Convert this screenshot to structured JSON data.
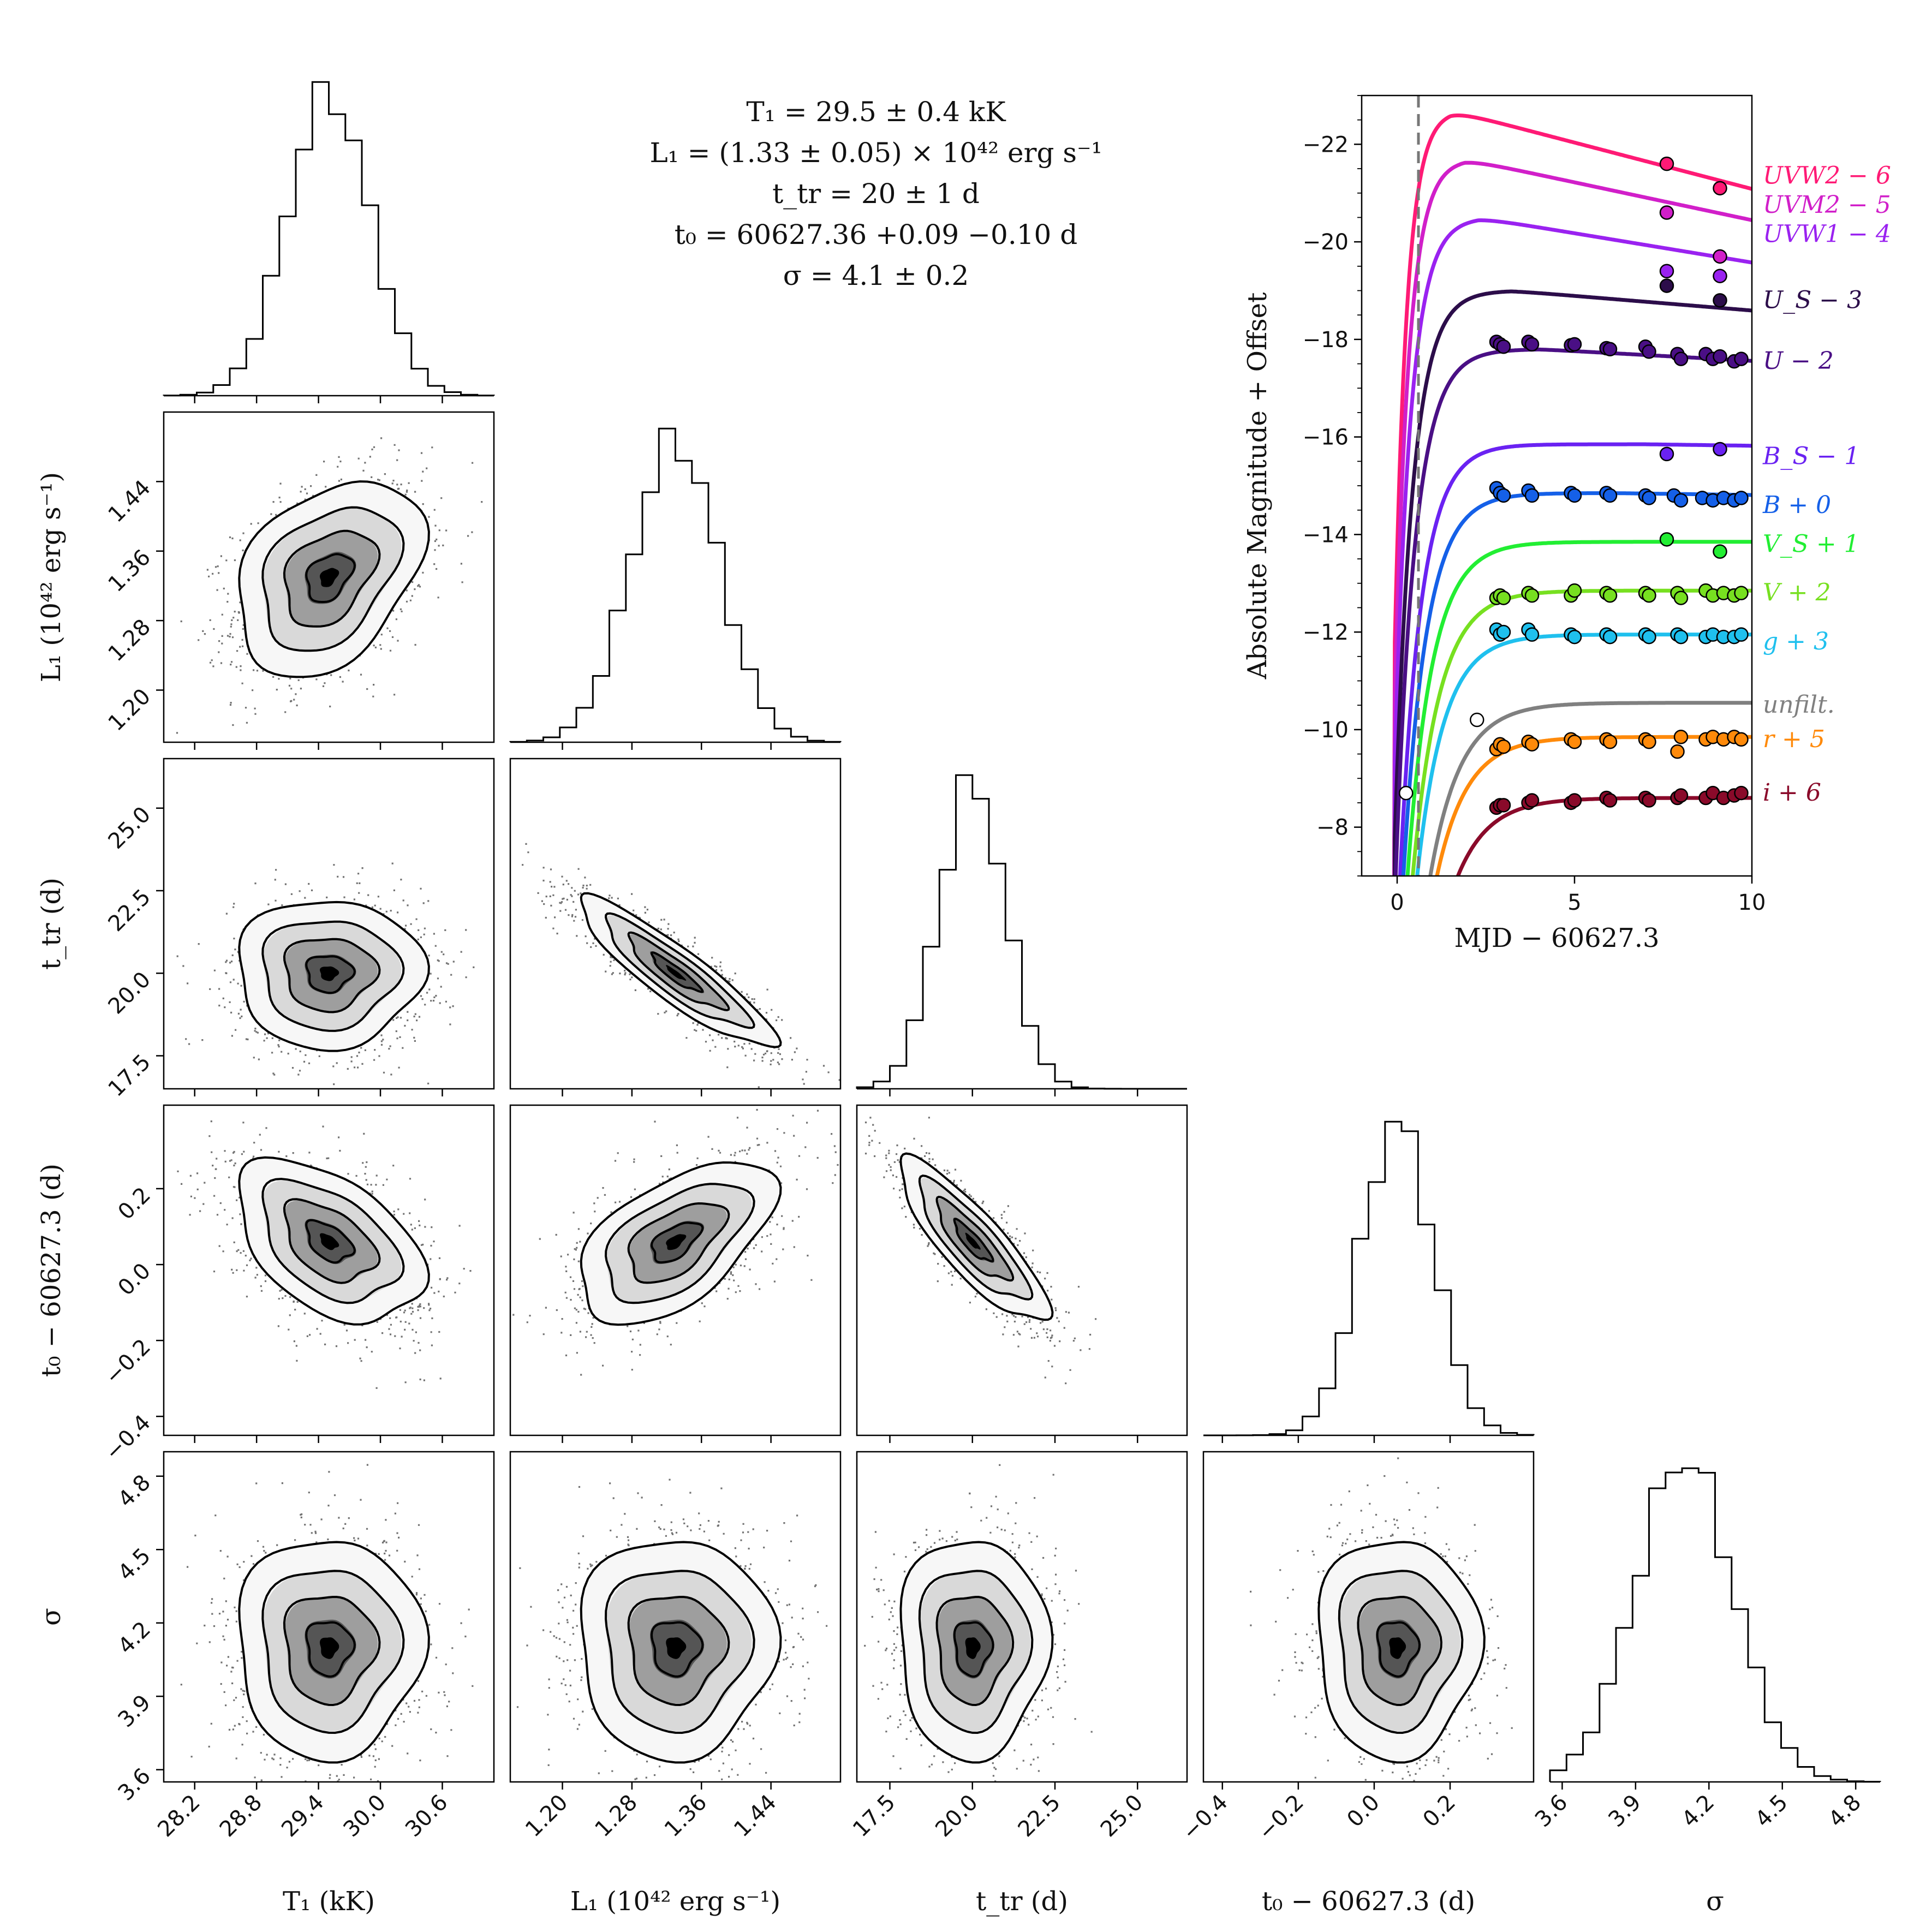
{
  "figure": {
    "summary": [
      "T₁ = 29.5 ± 0.4 kK",
      "L₁ = (1.33 ± 0.05) × 10⁴² erg s⁻¹",
      "t_tr = 20 ± 1 d",
      "t₀ = 60627.36 +0.09 −0.10 d",
      "σ = 4.1 ± 0.2"
    ]
  },
  "chart_data": [
    {
      "type": "corner",
      "parameters": [
        {
          "key": "T1",
          "label": "T₁ (kK)",
          "mean": 29.5,
          "sd": 0.4,
          "range": [
            27.9,
            31.1
          ],
          "ticks": [
            28.2,
            28.8,
            29.4,
            30.0,
            30.6
          ],
          "tick_labels": [
            "28.2",
            "28.8",
            "29.4",
            "30.0",
            "30.6"
          ]
        },
        {
          "key": "L1",
          "label": "L₁ (10⁴² erg s⁻¹)",
          "mean": 1.33,
          "sd": 0.05,
          "range": [
            1.14,
            1.52
          ],
          "ticks": [
            1.2,
            1.28,
            1.36,
            1.44
          ],
          "tick_labels": [
            "1.20",
            "1.28",
            "1.36",
            "1.44"
          ]
        },
        {
          "key": "ttr",
          "label": "t_tr (d)",
          "mean": 20.0,
          "sd": 1.0,
          "range": [
            16.5,
            26.5
          ],
          "ticks": [
            17.5,
            20.0,
            22.5,
            25.0
          ],
          "tick_labels": [
            "17.5",
            "20.0",
            "22.5",
            "25.0"
          ]
        },
        {
          "key": "t0",
          "label": "t₀ − 60627.3 (d)",
          "mean": 0.06,
          "sd": 0.095,
          "range": [
            -0.45,
            0.42
          ],
          "ticks": [
            -0.4,
            -0.2,
            0.0,
            0.2
          ],
          "tick_labels": [
            "−0.4",
            "−0.2",
            "0.0",
            "0.2"
          ]
        },
        {
          "key": "sigma",
          "label": "σ",
          "mean": 4.1,
          "sd": 0.2,
          "range": [
            3.55,
            4.9
          ],
          "ticks": [
            3.6,
            3.9,
            4.2,
            4.5,
            4.8
          ],
          "tick_labels": [
            "3.6",
            "3.9",
            "4.2",
            "4.5",
            "4.8"
          ]
        }
      ],
      "correlations": [
        {
          "pair": [
            "T1",
            "L1"
          ],
          "rho": 0.35
        },
        {
          "pair": [
            "T1",
            "ttr"
          ],
          "rho": 0.0
        },
        {
          "pair": [
            "T1",
            "t0"
          ],
          "rho": -0.45
        },
        {
          "pair": [
            "T1",
            "sigma"
          ],
          "rho": 0.0
        },
        {
          "pair": [
            "L1",
            "ttr"
          ],
          "rho": -0.9
        },
        {
          "pair": [
            "L1",
            "t0"
          ],
          "rho": 0.55
        },
        {
          "pair": [
            "L1",
            "sigma"
          ],
          "rho": 0.0
        },
        {
          "pair": [
            "ttr",
            "t0"
          ],
          "rho": -0.85
        },
        {
          "pair": [
            "ttr",
            "sigma"
          ],
          "rho": 0.0
        },
        {
          "pair": [
            "t0",
            "sigma"
          ],
          "rho": 0.0
        }
      ],
      "contour_levels_sigma": [
        0.5,
        1.0,
        1.5,
        2.0
      ]
    },
    {
      "type": "line",
      "title": "",
      "xlabel": "MJD − 60627.3",
      "ylabel": "Absolute Magnitude + Offset",
      "xlim": [
        -1.0,
        10.0
      ],
      "ylim": [
        -7.0,
        -23.0
      ],
      "x_ticks": [
        0,
        5,
        10
      ],
      "x_tick_labels": [
        "0",
        "5",
        "10"
      ],
      "y_ticks": [
        -8,
        -10,
        -12,
        -14,
        -16,
        -18,
        -20,
        -22
      ],
      "y_tick_labels": [
        "−8",
        "−10",
        "−12",
        "−14",
        "−16",
        "−18",
        "−20",
        "−22"
      ],
      "explosion_time": 0.6,
      "series": [
        {
          "name": "UVW2 − 6",
          "color": "#ff1a75",
          "peak": -22.7,
          "t_peak": 1.5,
          "decline": 0.19,
          "rise": 0.35,
          "x": [
            7.6,
            9.1
          ],
          "y": [
            -21.6,
            -21.1
          ]
        },
        {
          "name": "UVM2 − 5",
          "color": "#d11fc9",
          "peak": -21.7,
          "t_peak": 1.9,
          "decline": 0.155,
          "rise": 0.4,
          "x": [
            7.6,
            9.1
          ],
          "y": [
            -20.6,
            -19.7
          ]
        },
        {
          "name": "UVW1 − 4",
          "color": "#9a22f0",
          "peak": -20.5,
          "t_peak": 2.3,
          "decline": 0.12,
          "rise": 0.45,
          "x": [
            7.6,
            9.1
          ],
          "y": [
            -19.4,
            -19.3
          ]
        },
        {
          "name": "U_S − 3",
          "color": "#2c0d4a",
          "peak": -19.0,
          "t_peak": 3.2,
          "decline": 0.06,
          "rise": 0.5,
          "x": [
            7.6,
            9.1
          ],
          "y": [
            -19.1,
            -18.8
          ]
        },
        {
          "name": "U − 2",
          "color": "#4a0f85",
          "peak": -17.8,
          "t_peak": 4.0,
          "decline": 0.04,
          "rise": 0.55,
          "x": [
            2.8,
            2.9,
            3.0,
            3.7,
            3.8,
            4.9,
            5.0,
            5.9,
            6.0,
            7.0,
            7.1,
            7.9,
            8.0,
            8.7,
            8.9,
            9.1,
            9.5,
            9.7
          ],
          "y": [
            -17.95,
            -17.9,
            -17.85,
            -17.95,
            -17.9,
            -17.88,
            -17.9,
            -17.82,
            -17.8,
            -17.85,
            -17.75,
            -17.7,
            -17.6,
            -17.7,
            -17.6,
            -17.65,
            -17.55,
            -17.6
          ]
        },
        {
          "name": "B_S − 1",
          "color": "#6a22f2",
          "peak": -15.85,
          "t_peak": 7.0,
          "decline": 0.01,
          "rise": 0.6,
          "x": [
            7.6,
            9.1
          ],
          "y": [
            -15.65,
            -15.75
          ]
        },
        {
          "name": "B + 0",
          "color": "#1560e8",
          "peak": -14.85,
          "t_peak": 6.0,
          "decline": 0.01,
          "rise": 0.65,
          "x": [
            2.8,
            2.9,
            3.0,
            3.7,
            3.8,
            4.9,
            5.0,
            5.9,
            6.0,
            7.0,
            7.1,
            7.8,
            8.0,
            8.6,
            8.9,
            9.2,
            9.5,
            9.7
          ],
          "y": [
            -14.95,
            -14.85,
            -14.8,
            -14.9,
            -14.8,
            -14.85,
            -14.8,
            -14.85,
            -14.8,
            -14.8,
            -14.75,
            -14.8,
            -14.7,
            -14.75,
            -14.7,
            -14.75,
            -14.7,
            -14.75
          ]
        },
        {
          "name": "V_S + 1",
          "color": "#22ee33",
          "peak": -13.85,
          "t_peak": 8.0,
          "decline": 0.0,
          "rise": 0.7,
          "x": [
            7.6,
            9.1
          ],
          "y": [
            -13.9,
            -13.65
          ]
        },
        {
          "name": "V + 2",
          "color": "#77e020",
          "peak": -12.85,
          "t_peak": 7.5,
          "decline": 0.0,
          "rise": 0.75,
          "x": [
            2.8,
            2.9,
            3.0,
            3.7,
            3.8,
            4.9,
            5.0,
            5.9,
            6.0,
            7.0,
            7.1,
            7.9,
            8.0,
            8.7,
            8.9,
            9.2,
            9.5,
            9.7
          ],
          "y": [
            -12.7,
            -12.75,
            -12.7,
            -12.8,
            -12.75,
            -12.75,
            -12.85,
            -12.8,
            -12.75,
            -12.8,
            -12.75,
            -12.8,
            -12.7,
            -12.85,
            -12.75,
            -12.8,
            -12.75,
            -12.8
          ]
        },
        {
          "name": "g + 3",
          "color": "#1fc0ee",
          "peak": -11.95,
          "t_peak": 7.0,
          "decline": 0.0,
          "rise": 0.75,
          "x": [
            2.8,
            2.9,
            3.0,
            3.7,
            3.8,
            4.9,
            5.0,
            5.9,
            6.0,
            7.0,
            7.1,
            7.9,
            8.0,
            8.7,
            8.9,
            9.2,
            9.5,
            9.7
          ],
          "y": [
            -12.05,
            -11.95,
            -12.0,
            -12.05,
            -11.95,
            -11.95,
            -11.9,
            -11.95,
            -11.9,
            -11.95,
            -11.9,
            -11.95,
            -11.9,
            -11.9,
            -11.95,
            -11.9,
            -11.9,
            -11.95
          ]
        },
        {
          "name": "unfilt.",
          "color": "#808080",
          "peak": -10.55,
          "t_peak": 9.0,
          "decline": 0.0,
          "rise": 0.85,
          "x": [
            0.25,
            2.25
          ],
          "y": [
            -8.7,
            -10.2
          ]
        },
        {
          "name": "r + 5",
          "color": "#ff8a0a",
          "peak": -9.85,
          "t_peak": 9.0,
          "decline": 0.0,
          "rise": 0.85,
          "x": [
            2.8,
            2.9,
            3.0,
            3.7,
            3.8,
            4.9,
            5.0,
            5.9,
            6.0,
            7.0,
            7.1,
            7.9,
            8.0,
            8.7,
            8.9,
            9.2,
            9.5,
            9.7
          ],
          "y": [
            -9.6,
            -9.7,
            -9.65,
            -9.75,
            -9.7,
            -9.8,
            -9.75,
            -9.8,
            -9.75,
            -9.8,
            -9.75,
            -9.55,
            -9.85,
            -9.8,
            -9.85,
            -9.8,
            -9.85,
            -9.8
          ]
        },
        {
          "name": "i + 6",
          "color": "#8a0a2a",
          "peak": -8.6,
          "t_peak": 9.0,
          "decline": 0.0,
          "rise": 0.9,
          "x": [
            2.8,
            2.9,
            3.0,
            3.7,
            3.8,
            4.9,
            5.0,
            5.9,
            6.0,
            7.0,
            7.1,
            7.9,
            8.0,
            8.7,
            8.9,
            9.2,
            9.5,
            9.7
          ],
          "y": [
            -8.4,
            -8.45,
            -8.45,
            -8.5,
            -8.55,
            -8.5,
            -8.55,
            -8.6,
            -8.55,
            -8.6,
            -8.55,
            -8.6,
            -8.65,
            -8.6,
            -8.7,
            -8.6,
            -8.65,
            -8.7
          ]
        }
      ]
    }
  ]
}
